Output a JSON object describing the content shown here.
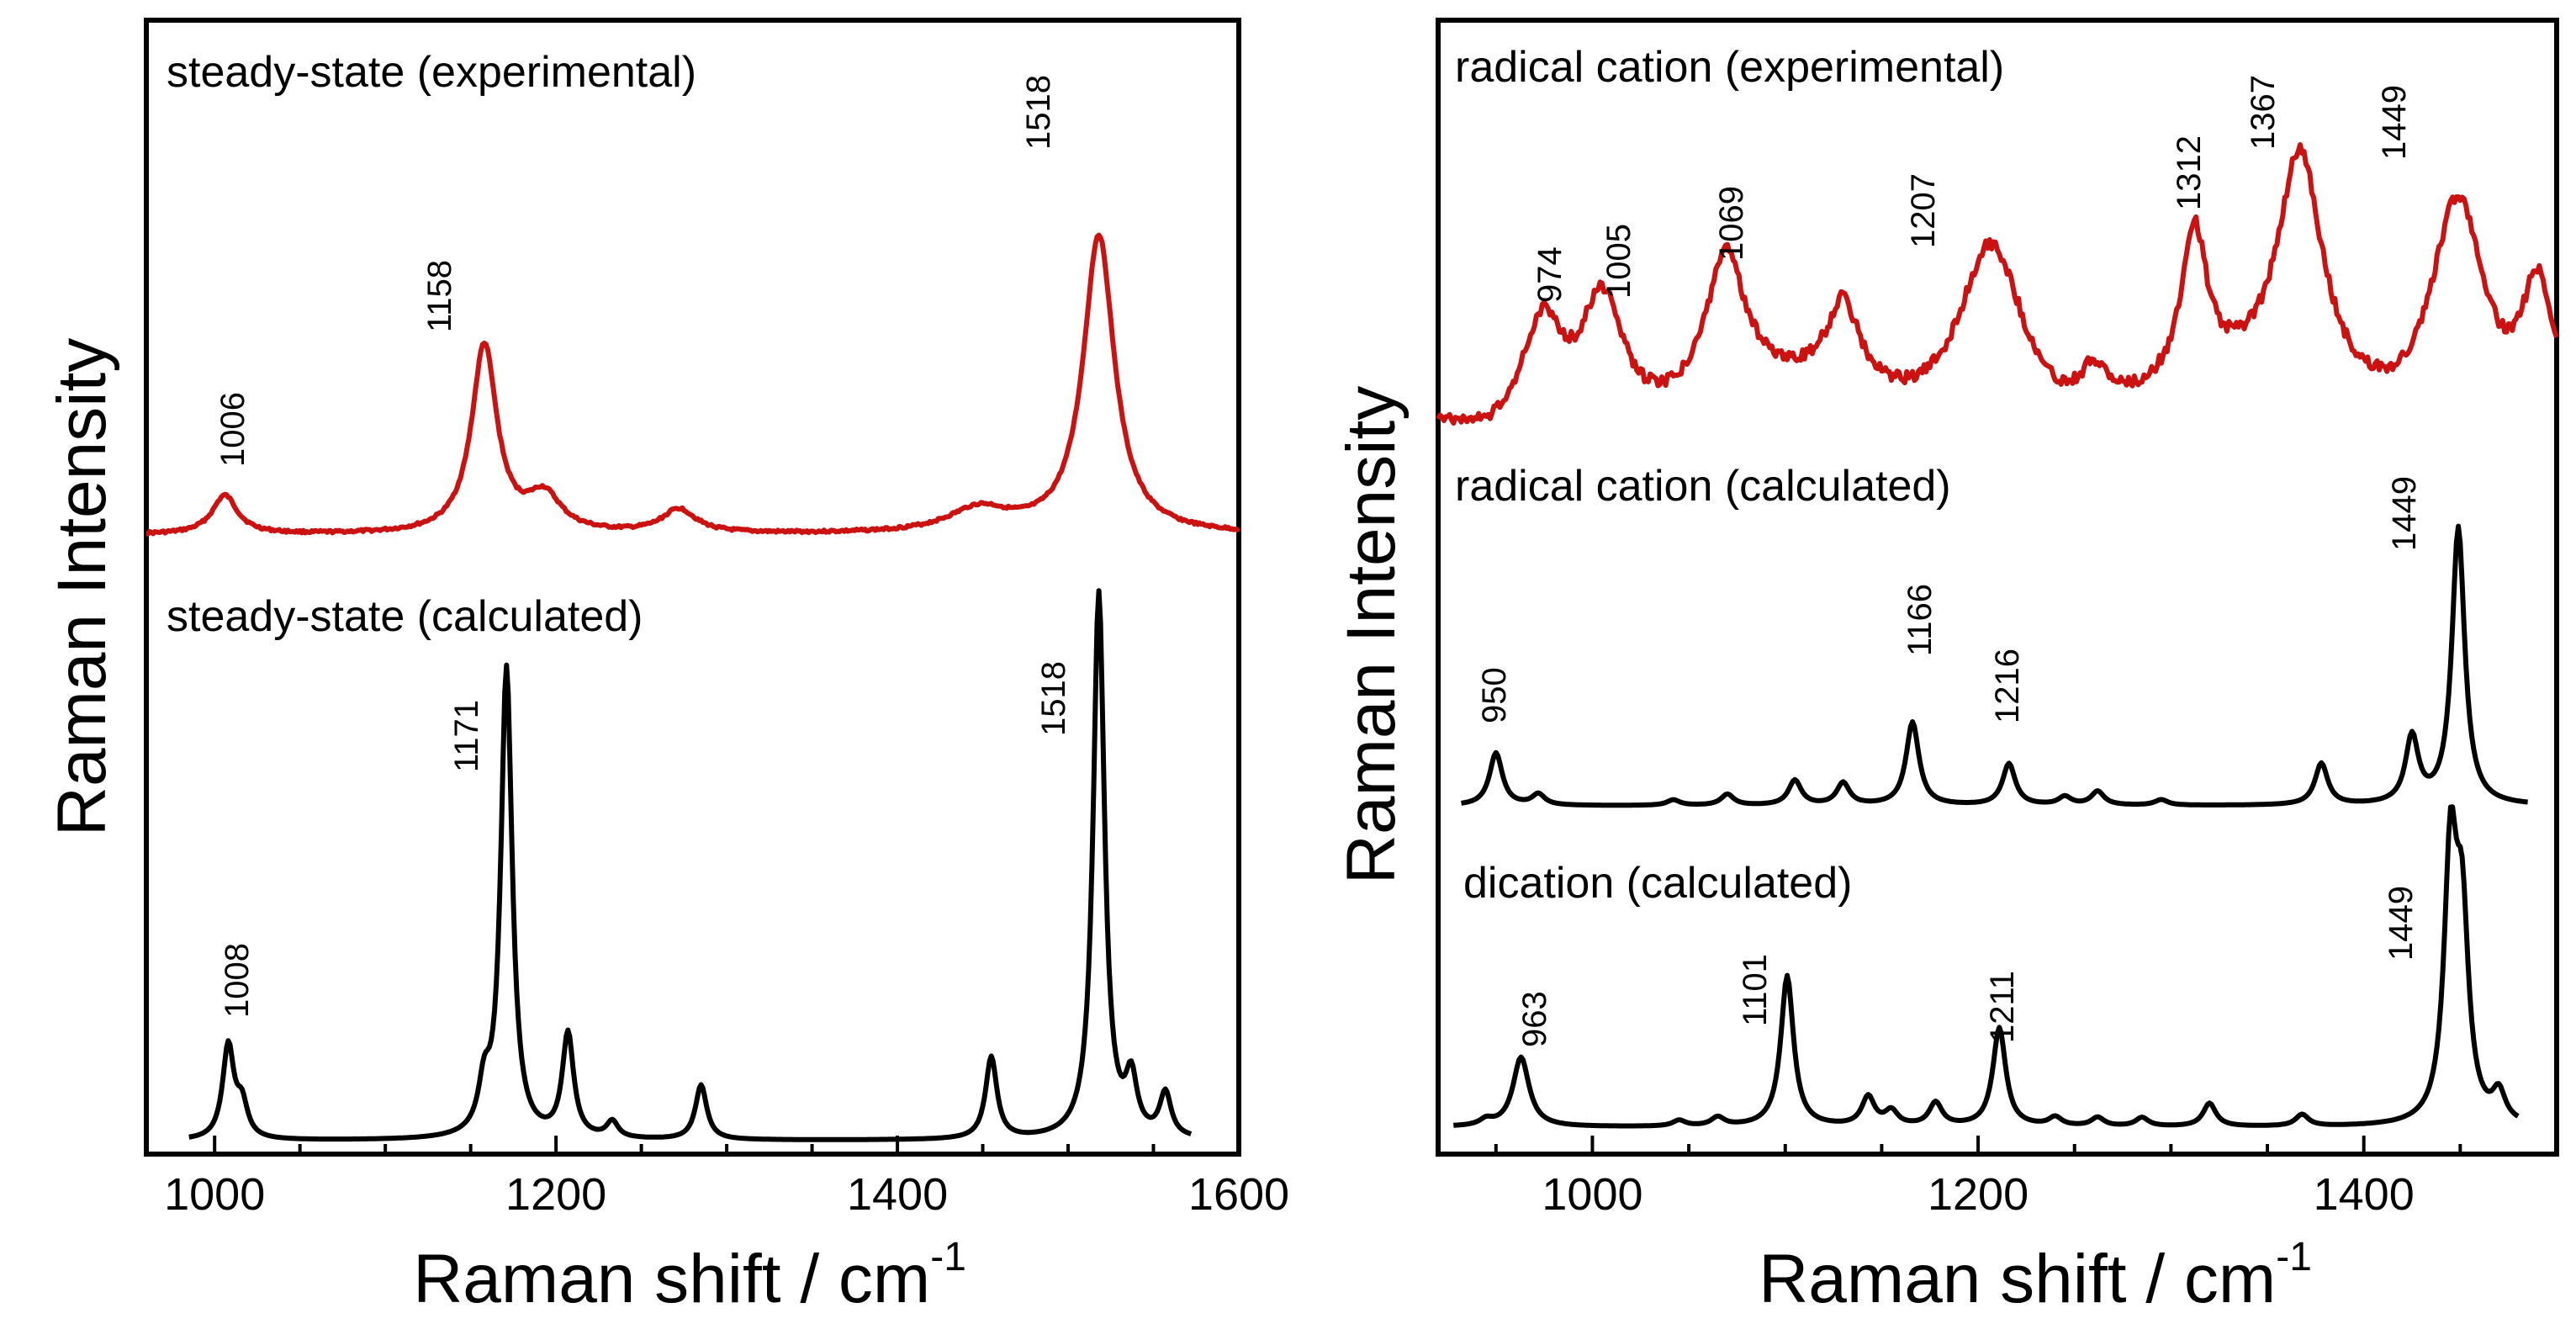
{
  "chart_data": [
    {
      "type": "line",
      "ylabel": "Raman Intensity",
      "xlabel": "Raman shift / cm",
      "xlabel_superscript": "-1",
      "xlim": [
        960,
        1600
      ],
      "xticks": [
        1000,
        1200,
        1400,
        1600
      ],
      "grid": false,
      "series": [
        {
          "name": "steady-state (experimental)",
          "color": "#cc1111",
          "baseline_peaks": [
            [
              1006,
              0.13,
              9
            ],
            [
              1158,
              0.63,
              9
            ],
            [
              1193,
              0.12,
              12
            ],
            [
              1272,
              0.08,
              12
            ],
            [
              1448,
              0.08,
              22
            ],
            [
              1518,
              1.0,
              11
            ]
          ],
          "peak_labels": [
            "1006",
            "1158",
            "1518"
          ]
        },
        {
          "name": "steady-state (calculated)",
          "color": "#000000",
          "baseline_peaks": [
            [
              1008,
              0.17,
              4
            ],
            [
              1016,
              0.06,
              4
            ],
            [
              1158,
              0.08,
              4
            ],
            [
              1171,
              0.86,
              4
            ],
            [
              1207,
              0.19,
              4
            ],
            [
              1233,
              0.03,
              4
            ],
            [
              1285,
              0.1,
              4
            ],
            [
              1455,
              0.15,
              4
            ],
            [
              1518,
              1.0,
              4
            ],
            [
              1537,
              0.1,
              4
            ],
            [
              1557,
              0.08,
              4
            ]
          ],
          "peak_labels": [
            "1008",
            "1171",
            "1518"
          ]
        }
      ]
    },
    {
      "type": "line",
      "ylabel": "Raman Intensity",
      "xlabel": "Raman shift / cm",
      "xlabel_superscript": "-1",
      "xlim": [
        920,
        1500
      ],
      "xticks": [
        1000,
        1200,
        1400
      ],
      "grid": false,
      "series": [
        {
          "name": "radical cation (experimental)",
          "color": "#cc1111",
          "baseline_peaks": [
            [
              974,
              0.45,
              14
            ],
            [
              1005,
              0.5,
              14
            ],
            [
              1069,
              0.5,
              12
            ],
            [
              1130,
              0.3,
              10
            ],
            [
              1207,
              0.75,
              22
            ],
            [
              1260,
              0.15,
              10
            ],
            [
              1312,
              0.55,
              8
            ],
            [
              1367,
              0.85,
              14
            ],
            [
              1449,
              0.9,
              18
            ],
            [
              1490,
              0.5,
              10
            ]
          ],
          "peak_labels": [
            "974",
            "1005",
            "1069",
            "1207",
            "1312",
            "1367",
            "1449"
          ]
        },
        {
          "name": "radical cation (calculated)",
          "color": "#000000",
          "baseline_peaks": [
            [
              950,
              0.19,
              4
            ],
            [
              972,
              0.04,
              4
            ],
            [
              1042,
              0.02,
              4
            ],
            [
              1070,
              0.04,
              4
            ],
            [
              1105,
              0.09,
              4
            ],
            [
              1130,
              0.08,
              4
            ],
            [
              1166,
              0.3,
              4
            ],
            [
              1216,
              0.15,
              4
            ],
            [
              1245,
              0.03,
              4
            ],
            [
              1262,
              0.05,
              4
            ],
            [
              1295,
              0.02,
              4
            ],
            [
              1378,
              0.15,
              4
            ],
            [
              1425,
              0.24,
              4
            ],
            [
              1449,
              1.0,
              4
            ]
          ],
          "peak_labels": [
            "950",
            "1166",
            "1216",
            "1449"
          ]
        },
        {
          "name": "dication (calculated)",
          "color": "#000000",
          "baseline_peaks": [
            [
              945,
              0.02,
              4
            ],
            [
              963,
              0.24,
              5
            ],
            [
              1045,
              0.02,
              4
            ],
            [
              1065,
              0.03,
              4
            ],
            [
              1101,
              0.52,
              4
            ],
            [
              1143,
              0.1,
              4
            ],
            [
              1155,
              0.05,
              4
            ],
            [
              1178,
              0.08,
              4
            ],
            [
              1211,
              0.34,
              4
            ],
            [
              1240,
              0.03,
              4
            ],
            [
              1262,
              0.03,
              4
            ],
            [
              1285,
              0.03,
              4
            ],
            [
              1320,
              0.08,
              4
            ],
            [
              1368,
              0.04,
              4
            ],
            [
              1445,
              0.9,
              4
            ],
            [
              1451,
              0.65,
              4
            ],
            [
              1470,
              0.1,
              4
            ]
          ],
          "peak_labels": [
            "963",
            "1101",
            "1211",
            "1449"
          ]
        }
      ]
    }
  ]
}
